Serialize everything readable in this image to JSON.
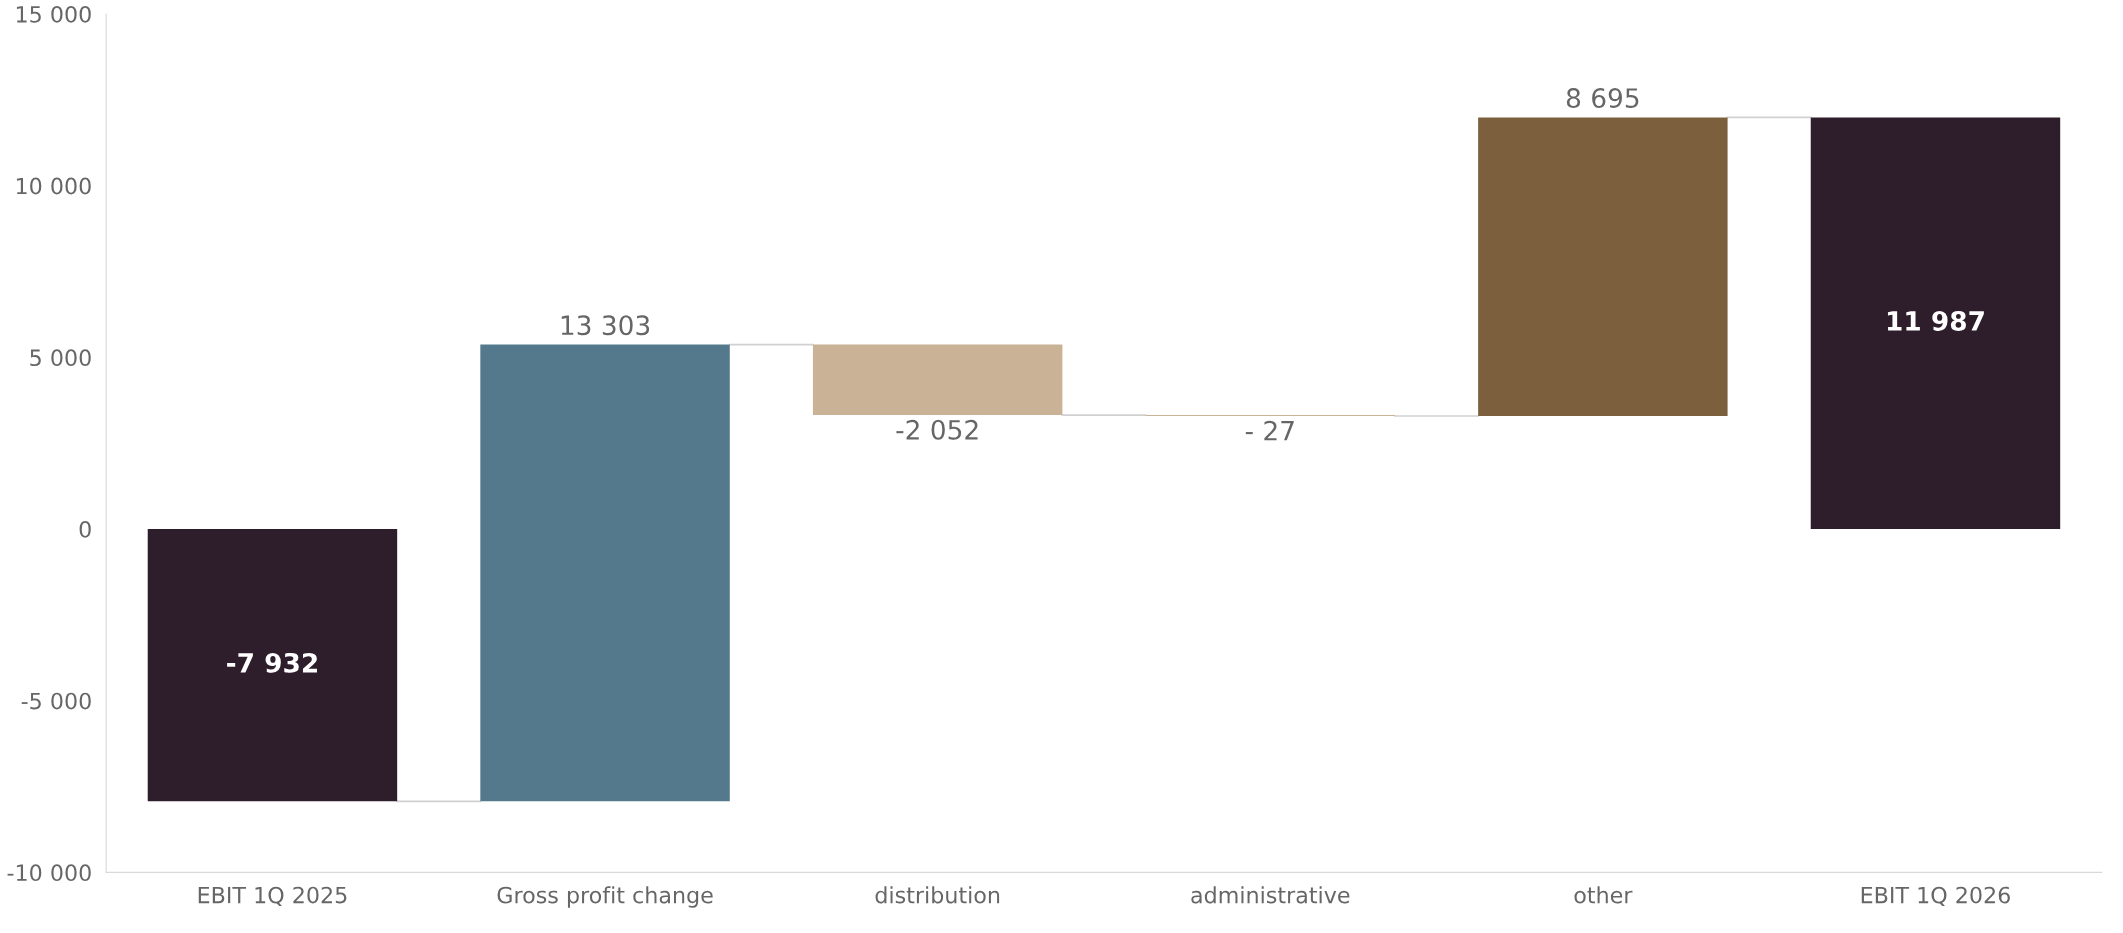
{
  "chart_data": {
    "type": "bar",
    "categories": [
      "EBIT 1Q 2025",
      "Gross profit change",
      "distribution",
      "administrative",
      "other",
      "EBIT 1Q 2026"
    ],
    "values": [
      -7932,
      13303,
      -2052,
      -27,
      8695,
      11987
    ],
    "base": [
      0,
      -7932,
      5371,
      3319,
      3292,
      0
    ],
    "colors": [
      "#2e1e2b",
      "#54788c",
      "#c9b295",
      "#c9b295",
      "#7c603e",
      "#2e1e2b"
    ],
    "value_labels": [
      "-7 932",
      "13 303",
      "-2 052",
      "- 27",
      "8 695",
      "11 987"
    ],
    "ylim": [
      -10000,
      15000
    ],
    "yticks": [
      {
        "value": -10000,
        "label": "-10 000"
      },
      {
        "value": -5000,
        "label": "-5 000"
      },
      0,
      {
        "value": 5000,
        "label": "5 000"
      },
      {
        "value": 10000,
        "label": "10 000"
      },
      {
        "value": 15000,
        "label": "15 000"
      }
    ],
    "grid": false,
    "legend": false
  }
}
